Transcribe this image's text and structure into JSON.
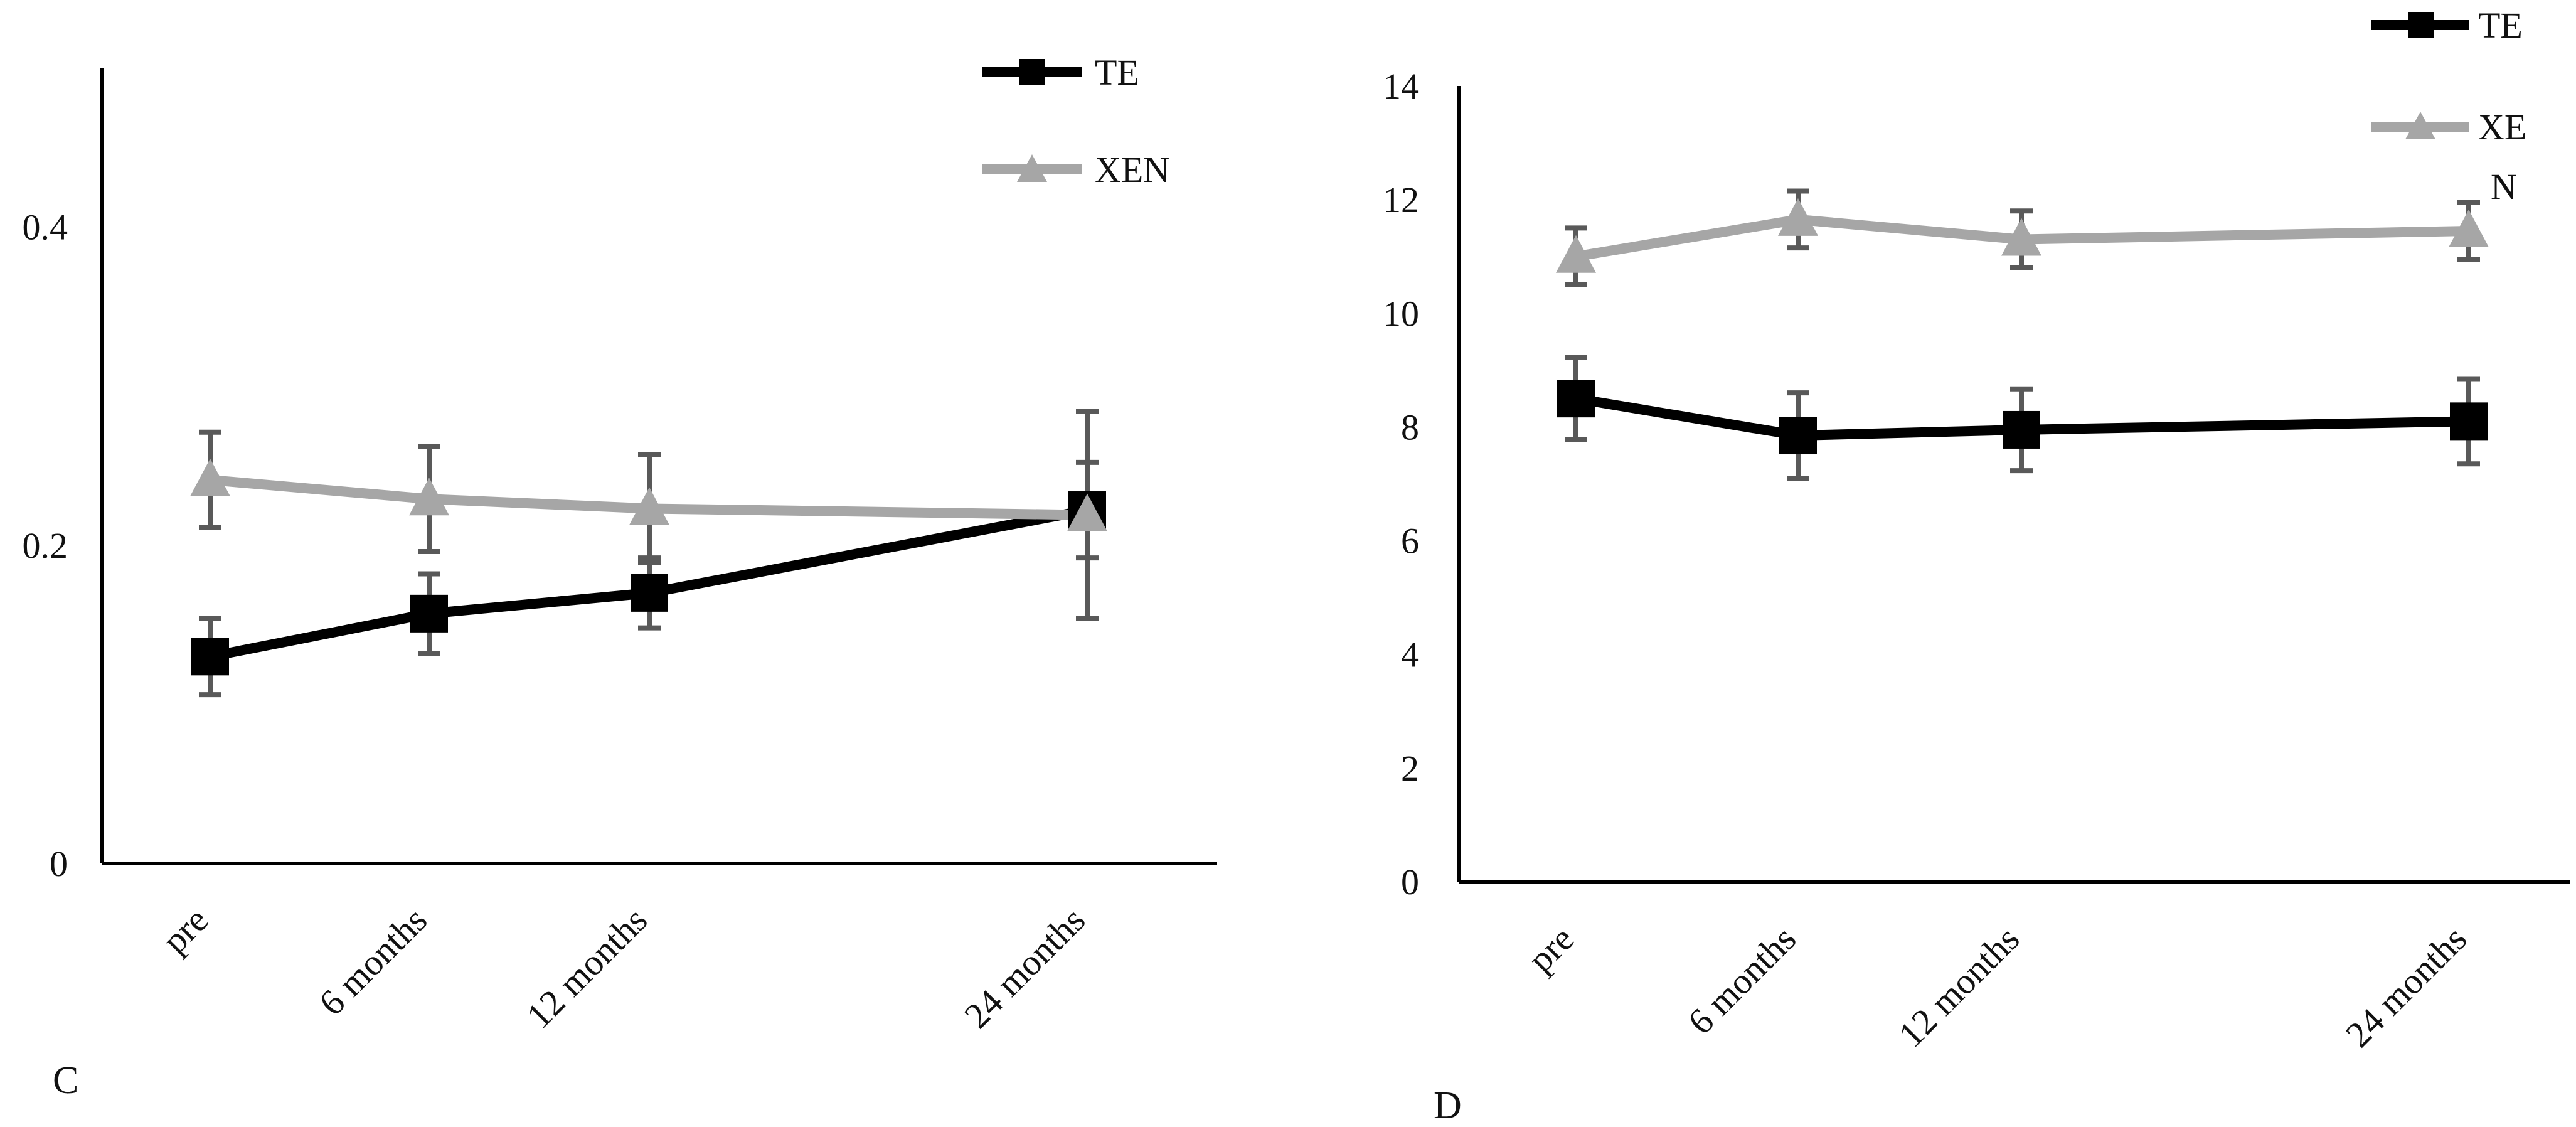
{
  "chart_data": [
    {
      "type": "line",
      "panel_label": "C",
      "categories": [
        "pre",
        "6 months",
        "12 months",
        "24 months"
      ],
      "x_positions": [
        0,
        6,
        12,
        24
      ],
      "yticks": [
        "0",
        "0.2",
        "0.4"
      ],
      "ytick_values": [
        0,
        0.2,
        0.4
      ],
      "ylim": [
        0,
        0.5
      ],
      "series": [
        {
          "name": "TE",
          "legend_lines": [
            "TE"
          ],
          "marker": "square",
          "color": "#000000",
          "values": [
            0.13,
            0.157,
            0.17,
            0.222
          ],
          "errors": [
            0.024,
            0.025,
            0.022,
            0.03
          ]
        },
        {
          "name": "XEN",
          "legend_lines": [
            "XEN"
          ],
          "marker": "triangle",
          "color": "#a6a6a6",
          "values": [
            0.241,
            0.229,
            0.223,
            0.219
          ],
          "errors": [
            0.03,
            0.033,
            0.034,
            0.065
          ]
        }
      ]
    },
    {
      "type": "line",
      "panel_label": "D",
      "categories": [
        "pre",
        "6 months",
        "12 months",
        "24 months"
      ],
      "x_positions": [
        0,
        6,
        12,
        24
      ],
      "yticks": [
        "0",
        "2",
        "4",
        "6",
        "8",
        "10",
        "12",
        "14"
      ],
      "ytick_values": [
        0,
        2,
        4,
        6,
        8,
        10,
        12,
        14
      ],
      "ylim": [
        0,
        14
      ],
      "series": [
        {
          "name": "TE",
          "legend_lines": [
            "TE"
          ],
          "marker": "square",
          "color": "#000000",
          "values": [
            8.5,
            7.85,
            7.95,
            8.1
          ],
          "errors": [
            0.72,
            0.75,
            0.72,
            0.75
          ]
        },
        {
          "name": "XEN",
          "legend_lines": [
            "XE",
            "N"
          ],
          "marker": "triangle",
          "color": "#a6a6a6",
          "values": [
            11.0,
            11.65,
            11.3,
            11.45
          ],
          "errors": [
            0.5,
            0.5,
            0.5,
            0.5
          ]
        }
      ]
    }
  ],
  "colors": {
    "axis": "#000000",
    "error_bar": "#595959"
  }
}
